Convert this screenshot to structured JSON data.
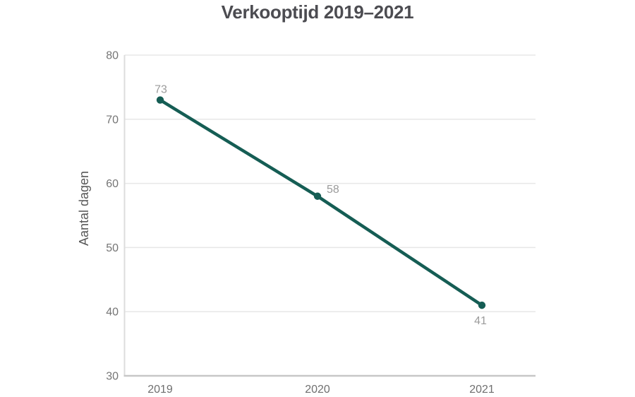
{
  "chart_data": {
    "type": "line",
    "title": "Verkooptijd 2019–2021",
    "categories": [
      "2019",
      "2020",
      "2021"
    ],
    "values": [
      73,
      58,
      41
    ],
    "data_labels": [
      "73",
      "58",
      "41"
    ],
    "xlabel": "",
    "ylabel": "Aantal dagen",
    "ylim": [
      30,
      80
    ],
    "yticks": [
      80,
      70,
      60,
      50,
      40,
      30
    ],
    "grid": true,
    "legend": false,
    "colors": {
      "line": "#155d54",
      "marker": "#155d54",
      "title_text": "#4c4c51",
      "tick_label": "#757575",
      "category_label": "#6f6f6f",
      "data_label": "#9b9b9b",
      "axis_title": "#595959",
      "gridline": "#e7e7e7",
      "axis_line_x": "#c7c7c7",
      "axis_line_y": "#dcdcdc",
      "background": "#ffffff"
    }
  }
}
